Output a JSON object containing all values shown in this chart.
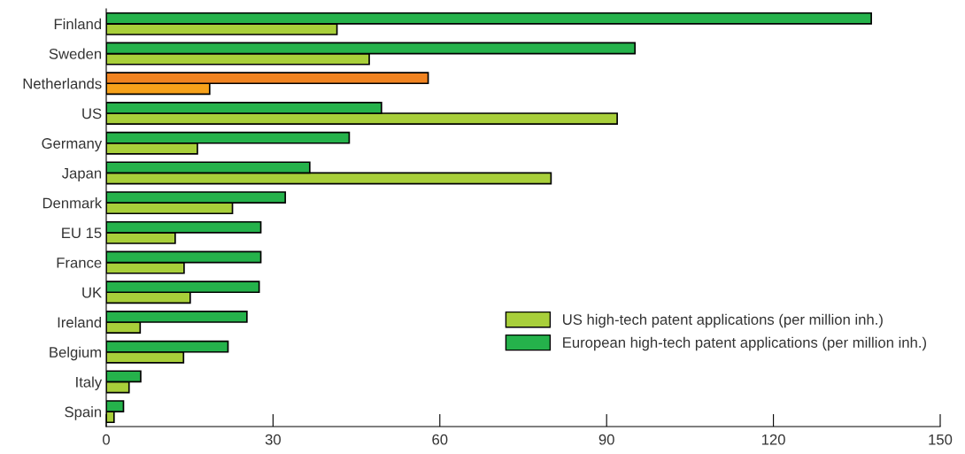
{
  "chart_data": {
    "type": "bar",
    "orientation": "horizontal",
    "categories": [
      "Finland",
      "Sweden",
      "Netherlands",
      "US",
      "Germany",
      "Japan",
      "Denmark",
      "EU 15",
      "France",
      "UK",
      "Ireland",
      "Belgium",
      "Italy",
      "Spain"
    ],
    "series": [
      {
        "name": "US high-tech patent applications (per million inh.)",
        "color": "#a8cf3a",
        "colors": [
          "#a8cf3a",
          "#a8cf3a",
          "#f7a11a",
          "#a8cf3a",
          "#a8cf3a",
          "#a8cf3a",
          "#a8cf3a",
          "#a8cf3a",
          "#a8cf3a",
          "#a8cf3a",
          "#a8cf3a",
          "#a8cf3a",
          "#a8cf3a",
          "#a8cf3a"
        ],
        "values": [
          41.5,
          47.3,
          18.6,
          91.9,
          16.4,
          80.0,
          22.7,
          12.4,
          14.0,
          15.1,
          6.1,
          13.9,
          4.1,
          1.4
        ]
      },
      {
        "name": "European high-tech patent applications (per million inh.)",
        "color": "#25b24b",
        "colors": [
          "#25b24b",
          "#25b24b",
          "#f08321",
          "#25b24b",
          "#25b24b",
          "#25b24b",
          "#25b24b",
          "#25b24b",
          "#25b24b",
          "#25b24b",
          "#25b24b",
          "#25b24b",
          "#25b24b",
          "#25b24b"
        ],
        "values": [
          137.6,
          95.1,
          57.9,
          49.5,
          43.7,
          36.6,
          32.2,
          27.8,
          27.8,
          27.5,
          25.3,
          21.9,
          6.2,
          3.1
        ]
      }
    ],
    "xlim": [
      0,
      150
    ],
    "xticks": [
      0,
      30,
      60,
      90,
      120,
      150
    ],
    "grid": false,
    "legend": "bottom right"
  }
}
